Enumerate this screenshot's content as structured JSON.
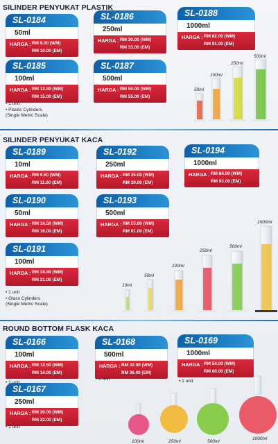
{
  "sections": [
    {
      "title": "SILINDER PENYUKAT PLASTIK",
      "note": [
        "• 1 unit",
        "• Plastic Cylinders",
        "(Single Metric Scale)"
      ],
      "items": [
        {
          "code": "SL-0184",
          "capacity": "50ml",
          "harga": "HARGA :",
          "wm": "RM 9.00 (WM)",
          "em": "RM 10.00 (EM)"
        },
        {
          "code": "SL-0186",
          "capacity": "250ml",
          "harga": "HARGA :",
          "wm": "RM 30.00 (WM)",
          "em": "RM 33.00 (EM)"
        },
        {
          "code": "SL-0188",
          "capacity": "1000ml",
          "harga": "HARGA :",
          "wm": "RM 82.00 (WM)",
          "em": "RM 91.00 (EM)"
        },
        {
          "code": "SL-0185",
          "capacity": "100ml",
          "harga": "HARGA :",
          "wm": "RM 12.80 (WM)",
          "em": "RM 15.00 (EM)"
        },
        {
          "code": "SL-0187",
          "capacity": "500ml",
          "harga": "HARGA :",
          "wm": "RM 50.00 (WM)",
          "em": "RM 55.00 (EM)"
        }
      ],
      "image_labels": [
        "50ml",
        "100ml",
        "250ml",
        "500ml"
      ]
    },
    {
      "title": "SILINDER PENYUKAT KACA",
      "note": [
        "• 1 unit",
        "• Glass Cylinders",
        "(Single Metric Scale)"
      ],
      "items": [
        {
          "code": "SL-0189",
          "capacity": "10ml",
          "harga": "HARGA :",
          "wm": "RM 9.50 (WM)",
          "em": "RM 11.00 (EM)"
        },
        {
          "code": "SL-0192",
          "capacity": "250ml",
          "harga": "HARGA :",
          "wm": "RM 35.00 (WM)",
          "em": "RM 39.00 (EM)"
        },
        {
          "code": "SL-0194",
          "capacity": "1000ml",
          "harga": "HARGA :",
          "wm": "RM 84.00 (WM)",
          "em": "RM 93.00 (EM)"
        },
        {
          "code": "SL-0190",
          "capacity": "50ml",
          "harga": "HARGA :",
          "wm": "RM 14.50 (WM)",
          "em": "RM 16.00 (EM)"
        },
        {
          "code": "SL-0193",
          "capacity": "500ml",
          "harga": "HARGA :",
          "wm": "RM 55.00 (WM)",
          "em": "RM 61.00 (EM)"
        },
        {
          "code": "SL-0191",
          "capacity": "100ml",
          "harga": "HARGA :",
          "wm": "RM 18.80 (WM)",
          "em": "RM 21.00 (EM)"
        }
      ],
      "image_labels": [
        "10ml",
        "50ml",
        "100ml",
        "250ml",
        "500ml",
        "1000ml"
      ]
    },
    {
      "title": "ROUND BOTTOM FLASK KACA",
      "note": [
        "• 1 unit"
      ],
      "items": [
        {
          "code": "SL-0166",
          "capacity": "100ml",
          "harga": "HARGA :",
          "wm": "RM 12.50 (WM)",
          "em": "RM 14.00 (EM)"
        },
        {
          "code": "SL-0168",
          "capacity": "500ml",
          "harga": "HARGA :",
          "wm": "RM 32.00 (WM)",
          "em": "RM 36.00 (EM)"
        },
        {
          "code": "SL-0169",
          "capacity": "1000ml",
          "harga": "HARGA :",
          "wm": "RM 54.00 (WM)",
          "em": "RM 60.00 (EM)"
        },
        {
          "code": "SL-0167",
          "capacity": "250ml",
          "harga": "HARGA :",
          "wm": "RM 20.00 (WM)",
          "em": "RM 22.00 (EM)"
        }
      ],
      "image_labels": [
        "100ml",
        "250ml",
        "500ml",
        "1000ml"
      ]
    }
  ],
  "colors": {
    "tab": "#1e7fc8",
    "price": "#c81e30",
    "liquids": [
      "#d93a6a",
      "#f0b52a",
      "#78c23a",
      "#e84a5a"
    ]
  }
}
